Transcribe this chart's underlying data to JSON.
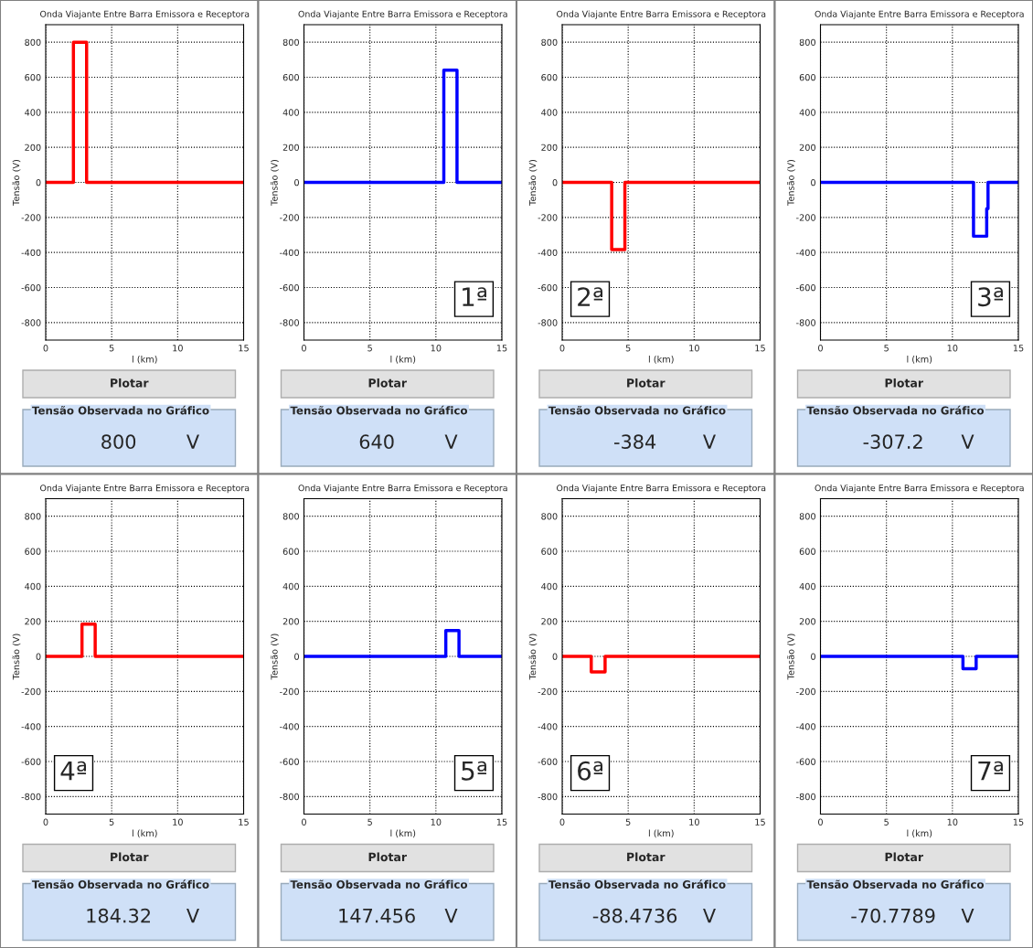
{
  "chart_data": [
    {
      "type": "line",
      "title": "Onda Viajante Entre Barra Emissora e Receptora",
      "xlabel": "l (km)",
      "ylabel": "Tensão (V)",
      "xlim": [
        0,
        15
      ],
      "ylim": [
        -900,
        900
      ],
      "xticks": [
        0,
        5,
        10,
        15
      ],
      "yticks": [
        -800,
        -600,
        -400,
        -200,
        0,
        200,
        400,
        600,
        800
      ],
      "grid": true,
      "series": [
        {
          "color": "#ff0000",
          "x": [
            0,
            2.1,
            2.1,
            3.1,
            3.1,
            15
          ],
          "values": [
            0,
            0,
            800,
            800,
            0,
            0
          ]
        }
      ],
      "annotations": [
        "Plotar",
        "Tensão Observada no Gráfico",
        "800",
        "V"
      ]
    },
    {
      "type": "line",
      "title": "Onda Viajante Entre Barra Emissora e Receptora",
      "xlabel": "l (km)",
      "ylabel": "Tensão (V)",
      "xlim": [
        0,
        15
      ],
      "ylim": [
        -900,
        900
      ],
      "xticks": [
        0,
        5,
        10,
        15
      ],
      "yticks": [
        -800,
        -600,
        -400,
        -200,
        0,
        200,
        400,
        600,
        800
      ],
      "grid": true,
      "series": [
        {
          "color": "#0000ff",
          "x": [
            0,
            10.6,
            10.6,
            11.6,
            11.6,
            15
          ],
          "values": [
            0,
            0,
            640,
            640,
            0,
            0
          ]
        }
      ],
      "annotations": [
        "Plotar",
        "Tensão Observada no Gráfico",
        "640",
        "V",
        "1ª"
      ]
    },
    {
      "type": "line",
      "title": "Onda Viajante Entre Barra Emissora e Receptora",
      "xlabel": "l (km)",
      "ylabel": "Tensão (V)",
      "xlim": [
        0,
        15
      ],
      "ylim": [
        -900,
        900
      ],
      "xticks": [
        0,
        5,
        10,
        15
      ],
      "yticks": [
        -800,
        -600,
        -400,
        -200,
        0,
        200,
        400,
        600,
        800
      ],
      "grid": true,
      "series": [
        {
          "color": "#ff0000",
          "x": [
            0,
            3.75,
            3.75,
            4.75,
            4.75,
            15
          ],
          "values": [
            0,
            0,
            -384,
            -384,
            0,
            0
          ]
        }
      ],
      "annotations": [
        "Plotar",
        "Tensão Observada no Gráfico",
        "-384",
        "V",
        "2ª"
      ]
    },
    {
      "type": "line",
      "title": "Onda Viajante Entre Barra Emissora e Receptora",
      "xlabel": "l (km)",
      "ylabel": "Tensão (V)",
      "xlim": [
        0,
        15
      ],
      "ylim": [
        -900,
        900
      ],
      "xticks": [
        0,
        5,
        10,
        15
      ],
      "yticks": [
        -800,
        -600,
        -400,
        -200,
        0,
        200,
        400,
        600,
        800
      ],
      "grid": true,
      "series": [
        {
          "color": "#0000ff",
          "x": [
            0,
            11.6,
            11.6,
            12.6,
            12.6,
            12.7,
            12.7,
            15
          ],
          "values": [
            0,
            0,
            -307.2,
            -307.2,
            -150,
            -150,
            0,
            0
          ]
        }
      ],
      "annotations": [
        "Plotar",
        "Tensão Observada no Gráfico",
        "-307.2",
        "V",
        "3ª"
      ]
    },
    {
      "type": "line",
      "title": "Onda Viajante Entre Barra Emissora e Receptora",
      "xlabel": "l (km)",
      "ylabel": "Tensão (V)",
      "xlim": [
        0,
        15
      ],
      "ylim": [
        -900,
        900
      ],
      "xticks": [
        0,
        5,
        10,
        15
      ],
      "yticks": [
        -800,
        -600,
        -400,
        -200,
        0,
        200,
        400,
        600,
        800
      ],
      "grid": true,
      "series": [
        {
          "color": "#ff0000",
          "x": [
            0,
            2.75,
            2.75,
            3.75,
            3.75,
            15
          ],
          "values": [
            0,
            0,
            184.32,
            184.32,
            0,
            0
          ]
        }
      ],
      "annotations": [
        "Plotar",
        "Tensão Observada no Gráfico",
        "184.32",
        "V",
        "4ª"
      ]
    },
    {
      "type": "line",
      "title": "Onda Viajante Entre Barra Emissora e Receptora",
      "xlabel": "l (km)",
      "ylabel": "Tensão (V)",
      "xlim": [
        0,
        15
      ],
      "ylim": [
        -900,
        900
      ],
      "xticks": [
        0,
        5,
        10,
        15
      ],
      "yticks": [
        -800,
        -600,
        -400,
        -200,
        0,
        200,
        400,
        600,
        800
      ],
      "grid": true,
      "series": [
        {
          "color": "#0000ff",
          "x": [
            0,
            10.75,
            10.75,
            11.75,
            11.75,
            15
          ],
          "values": [
            0,
            0,
            147.456,
            147.456,
            0,
            0
          ]
        }
      ],
      "annotations": [
        "Plotar",
        "Tensão Observada no Gráfico",
        "147.456",
        "V",
        "5ª"
      ]
    },
    {
      "type": "line",
      "title": "Onda Viajante Entre Barra Emissora e Receptora",
      "xlabel": "l (km)",
      "ylabel": "Tensão (V)",
      "xlim": [
        0,
        15
      ],
      "ylim": [
        -900,
        900
      ],
      "xticks": [
        0,
        5,
        10,
        15
      ],
      "yticks": [
        -800,
        -600,
        -400,
        -200,
        0,
        200,
        400,
        600,
        800
      ],
      "grid": true,
      "series": [
        {
          "color": "#ff0000",
          "x": [
            0,
            2.2,
            2.2,
            3.25,
            3.25,
            15
          ],
          "values": [
            0,
            0,
            -88.4736,
            -88.4736,
            0,
            0
          ]
        }
      ],
      "annotations": [
        "Plotar",
        "Tensão Observada no Gráfico",
        "-88.4736",
        "V",
        "6ª"
      ]
    },
    {
      "type": "line",
      "title": "Onda Viajante Entre Barra Emissora e Receptora",
      "xlabel": "l (km)",
      "ylabel": "Tensão (V)",
      "xlim": [
        0,
        15
      ],
      "ylim": [
        -900,
        900
      ],
      "xticks": [
        0,
        5,
        10,
        15
      ],
      "yticks": [
        -800,
        -600,
        -400,
        -200,
        0,
        200,
        400,
        600,
        800
      ],
      "grid": true,
      "series": [
        {
          "color": "#0000ff",
          "x": [
            0,
            10.8,
            10.8,
            11.8,
            11.8,
            15
          ],
          "values": [
            0,
            0,
            -70.7789,
            -70.7789,
            0,
            0
          ]
        }
      ],
      "annotations": [
        "Plotar",
        "Tensão Observada no Gráfico",
        "-70.7789",
        "V",
        "7ª"
      ]
    }
  ]
}
